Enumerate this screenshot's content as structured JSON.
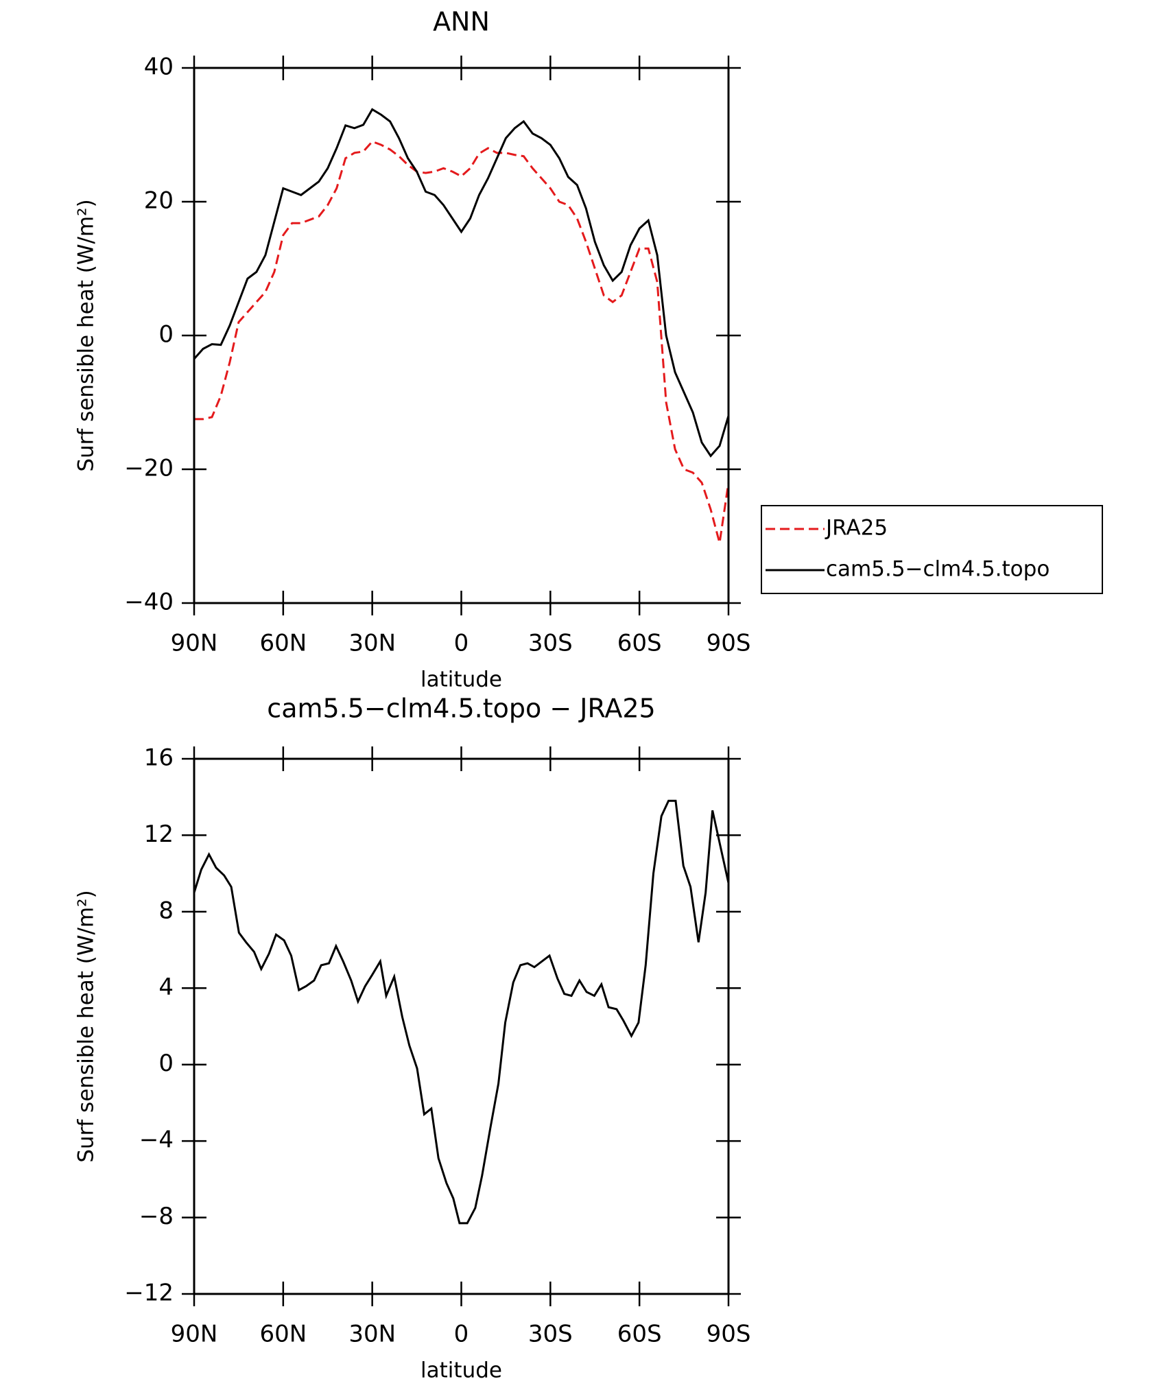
{
  "chart_data": [
    {
      "type": "line",
      "title": "ANN",
      "x_label": "latitude",
      "y_label": "Surf sensible heat (W/m²)",
      "x": [
        90,
        87,
        84,
        81,
        78,
        75,
        72,
        69,
        66,
        63,
        60,
        57,
        54,
        51,
        48,
        45,
        42,
        39,
        36,
        33,
        30,
        27,
        24,
        21,
        18,
        15,
        12,
        9,
        6,
        3,
        0,
        -3,
        -6,
        -9,
        -12,
        -15,
        -18,
        -21,
        -24,
        -27,
        -30,
        -33,
        -36,
        -39,
        -42,
        -45,
        -48,
        -51,
        -54,
        -57,
        -60,
        -63,
        -66,
        -69,
        -72,
        -75,
        -78,
        -81,
        -84,
        -87,
        -90
      ],
      "series": [
        {
          "name": "JRA25",
          "color": "#e41a1c",
          "dashed": true,
          "values": [
            -12.5,
            -12.5,
            -12.2,
            -9,
            -4,
            2,
            3.5,
            5,
            6.5,
            9.5,
            15,
            16.8,
            16.8,
            17.3,
            17.8,
            19.5,
            22,
            26.5,
            27.3,
            27.5,
            29,
            28.5,
            27.8,
            26.8,
            25.5,
            24.5,
            24.3,
            24.5,
            25,
            24.5,
            23.8,
            25,
            27.2,
            28,
            27.3,
            27.3,
            27,
            26.8,
            25,
            23.5,
            22,
            20,
            19.5,
            17.5,
            14,
            10,
            6,
            5,
            6,
            9.5,
            13,
            13,
            8,
            -10,
            -17,
            -20,
            -20.5,
            -22,
            -26,
            -31,
            -22
          ]
        },
        {
          "name": "cam5.5−clm4.5.topo",
          "color": "#000000",
          "dashed": false,
          "values": [
            -3.5,
            -2,
            -1.3,
            -1.4,
            1.5,
            5,
            8.5,
            9.5,
            12,
            17,
            22,
            21.5,
            21,
            22,
            23,
            25,
            28,
            31.4,
            31,
            31.5,
            33.8,
            33,
            32,
            29.5,
            26.5,
            24.5,
            21.5,
            21,
            19.5,
            17.5,
            15.5,
            17.5,
            21,
            23.5,
            26.5,
            29.5,
            31,
            32,
            30.2,
            29.5,
            28.5,
            26.5,
            23.7,
            22.5,
            19,
            14,
            10.5,
            8.2,
            9.5,
            13.5,
            16,
            17.2,
            12,
            0,
            -5.5,
            -8.5,
            -11.5,
            -16,
            -18,
            -16.5,
            -12
          ]
        }
      ],
      "xlim": [
        90,
        -90
      ],
      "xticks": [
        {
          "value": 90,
          "label": "90N"
        },
        {
          "value": 60,
          "label": "60N"
        },
        {
          "value": 30,
          "label": "30N"
        },
        0,
        {
          "value": -30,
          "label": "30S"
        },
        {
          "value": -60,
          "label": "60S"
        },
        {
          "value": -90,
          "label": "90S"
        }
      ],
      "ylim": [
        -40,
        40
      ],
      "yticks": [
        {
          "value": -40,
          "label": "−40"
        },
        {
          "value": -20,
          "label": "−20"
        },
        0,
        20,
        40
      ],
      "legend": "right"
    },
    {
      "type": "line",
      "title": "cam5.5−clm4.5.topo − JRA25",
      "x_label": "latitude",
      "y_label": "Surf sensible heat (W/m²)",
      "x": [
        90,
        87.6,
        85,
        82.6,
        79.9,
        77.5,
        74.9,
        72.5,
        69.8,
        67.4,
        64.8,
        62.4,
        59.7,
        57.3,
        54.7,
        52.3,
        49.6,
        47.2,
        44.6,
        42.2,
        39.8,
        37.1,
        34.8,
        32.4,
        30,
        27.3,
        25.3,
        22.6,
        19.9,
        17.5,
        14.9,
        12.5,
        10.1,
        7.7,
        5,
        2.7,
        0.6,
        -2,
        -4.7,
        -7,
        -9.8,
        -12.5,
        -14.8,
        -17.5,
        -19.9,
        -22.3,
        -24.6,
        -29.7,
        -32.4,
        -34.7,
        -37.1,
        -39.8,
        -42.2,
        -44.8,
        -47.2,
        -49.6,
        -52.3,
        -54.6,
        -57.3,
        -59.7,
        -62.1,
        -64.7,
        -67.4,
        -69.8,
        -72.2,
        -74.8,
        -77.2,
        -79.9,
        -82.3,
        -84.6,
        -87.3,
        -90
      ],
      "series": [
        {
          "name": "cam5.5−clm4.5.topo − JRA25",
          "color": "#000000",
          "dashed": false,
          "values": [
            9,
            10.2,
            11,
            10.3,
            9.9,
            9.3,
            6.9,
            6.4,
            5.9,
            5,
            5.8,
            6.8,
            6.5,
            5.7,
            3.9,
            4.1,
            4.4,
            5.2,
            5.3,
            6.2,
            5.4,
            4.4,
            3.3,
            4.1,
            4.7,
            5.4,
            3.6,
            4.6,
            2.5,
            1,
            -0.2,
            -2.6,
            -2.3,
            -4.9,
            -6.2,
            -7,
            -8.3,
            -8.3,
            -7.5,
            -5.8,
            -3.3,
            -1,
            2.2,
            4.3,
            5.2,
            5.3,
            5.1,
            5.7,
            4.5,
            3.7,
            3.6,
            4.4,
            3.8,
            3.6,
            4.2,
            3,
            2.9,
            2.3,
            1.5,
            2.2,
            5.2,
            10,
            13,
            13.8,
            13.8,
            10.4,
            9.3,
            6.4,
            9,
            13.3,
            11.4,
            9.5
          ]
        }
      ],
      "xlim": [
        90,
        -90
      ],
      "xticks": [
        {
          "value": 90,
          "label": "90N"
        },
        {
          "value": 60,
          "label": "60N"
        },
        {
          "value": 30,
          "label": "30N"
        },
        0,
        {
          "value": -30,
          "label": "30S"
        },
        {
          "value": -60,
          "label": "60S"
        },
        {
          "value": -90,
          "label": "90S"
        }
      ],
      "ylim": [
        -12,
        16
      ],
      "yticks": [
        {
          "value": -12,
          "label": "−12"
        },
        {
          "value": -8,
          "label": "−8"
        },
        {
          "value": -4,
          "label": "−4"
        },
        0,
        4,
        8,
        12,
        16
      ]
    }
  ]
}
